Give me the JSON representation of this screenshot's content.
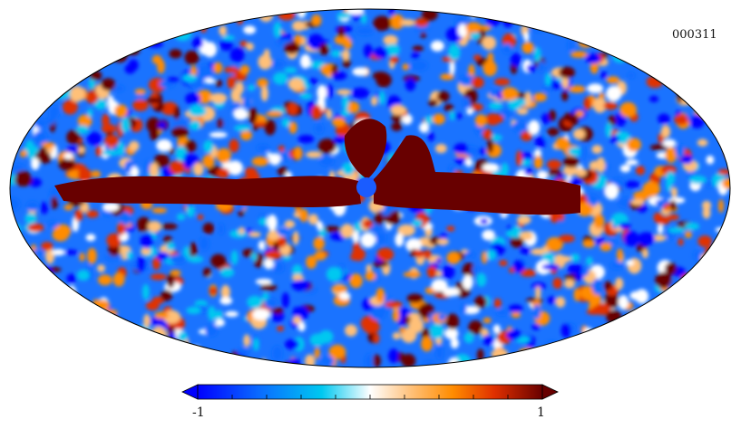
{
  "map": {
    "id": "000311",
    "projection": "mollweide",
    "colormap": [
      "#0000ff",
      "#0a6cff",
      "#00c8f0",
      "#ffffff",
      "#ffc078",
      "#ff8c00",
      "#e03000",
      "#680000"
    ],
    "outline_color": "#000000"
  },
  "colorbar": {
    "min_label": "-1",
    "max_label": "1",
    "ticks": 10
  }
}
